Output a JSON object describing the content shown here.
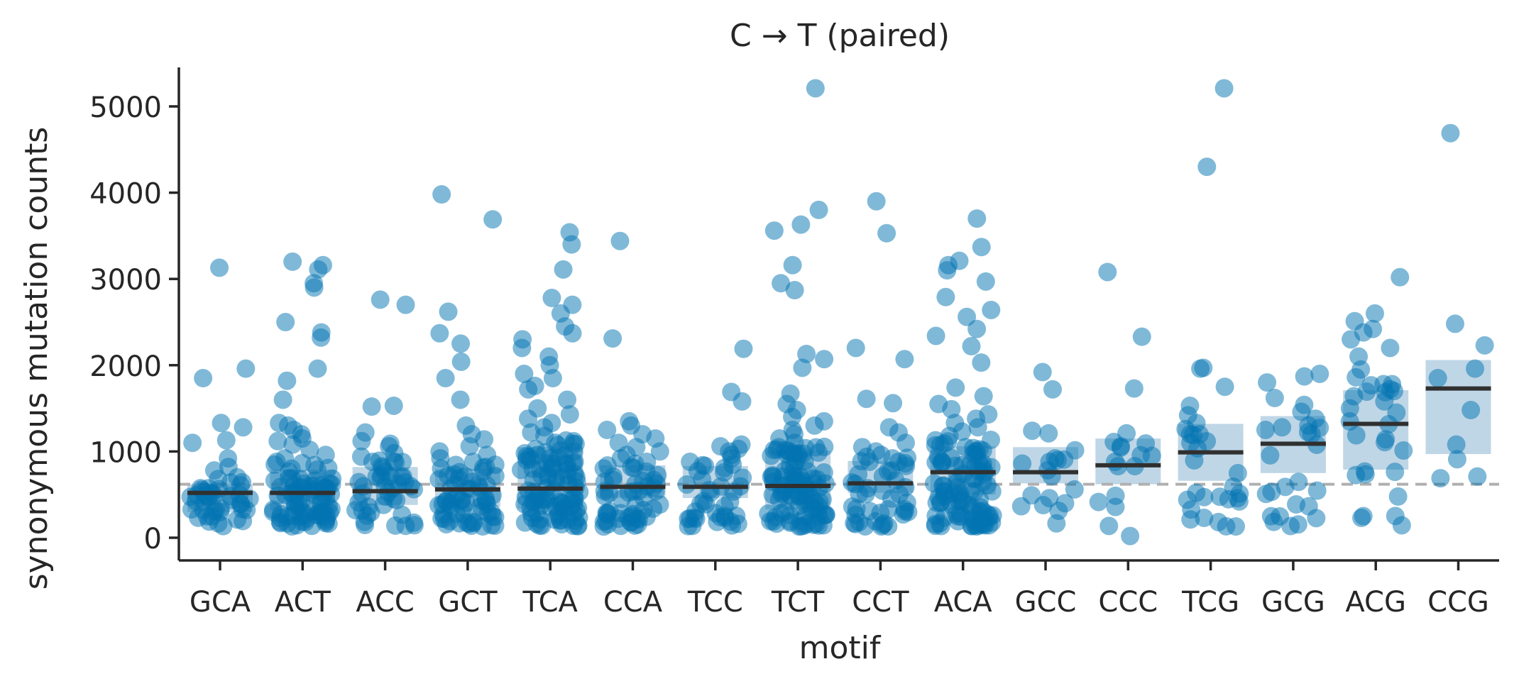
{
  "chart_data": {
    "type": "scatter",
    "title": "C → T (paired)",
    "xlabel": "motif",
    "ylabel": "synonymous mutation counts",
    "ylim": [
      -250,
      5460
    ],
    "yticks": [
      0,
      1000,
      2000,
      3000,
      4000,
      5000
    ],
    "grid": false,
    "legend": "none",
    "reference_line": 620,
    "colors": {
      "points": "#0173b2",
      "median": "#303030",
      "box": "#a9c8de",
      "reference": "#b0b0b0",
      "axis": "#262626"
    },
    "categories": [
      "GCA",
      "ACT",
      "ACC",
      "GCT",
      "TCA",
      "CCA",
      "TCC",
      "TCT",
      "CCT",
      "ACA",
      "GCC",
      "CCC",
      "TCG",
      "GCG",
      "ACG",
      "CCG"
    ],
    "groups": [
      {
        "motif": "GCA",
        "median": 520,
        "q1": 300,
        "q3": 620,
        "outliers": [
          3130,
          1960,
          1850,
          1330,
          1280,
          1130,
          1100,
          920,
          820,
          780,
          700,
          640
        ],
        "n_bulk": 40
      },
      {
        "motif": "ACT",
        "median": 520,
        "q1": 320,
        "q3": 790,
        "outliers": [
          3200,
          3160,
          3110,
          2950,
          2900,
          2500,
          2380,
          2320,
          1960,
          1820,
          1600,
          1330,
          1300,
          1250,
          1200,
          1150,
          1120,
          1080,
          1020,
          960,
          920,
          880
        ],
        "n_bulk": 80
      },
      {
        "motif": "ACC",
        "median": 540,
        "q1": 380,
        "q3": 820,
        "outliers": [
          2760,
          2700,
          1530,
          1520,
          1220,
          1120,
          1090,
          1060,
          980,
          940,
          880
        ],
        "n_bulk": 40
      },
      {
        "motif": "GCT",
        "median": 560,
        "q1": 360,
        "q3": 800,
        "outliers": [
          3980,
          3690,
          2620,
          2370,
          2250,
          2040,
          1850,
          1600,
          1300,
          1200,
          1140,
          1060,
          1000,
          960,
          920,
          880
        ],
        "n_bulk": 60
      },
      {
        "motif": "TCA",
        "median": 570,
        "q1": 340,
        "q3": 1050,
        "outliers": [
          3540,
          3400,
          3110,
          2780,
          2700,
          2600,
          2450,
          2370,
          2300,
          2200,
          2100,
          2000,
          1900,
          1850,
          1760,
          1720,
          1600,
          1500,
          1430,
          1380,
          1330,
          1280,
          1220,
          1180
        ],
        "n_bulk": 95
      },
      {
        "motif": "CCA",
        "median": 590,
        "q1": 460,
        "q3": 840,
        "outliers": [
          3440,
          2310,
          1350,
          1300,
          1250,
          1200,
          1150,
          1100,
          1050,
          1000,
          960,
          920,
          880
        ],
        "n_bulk": 50
      },
      {
        "motif": "TCC",
        "median": 590,
        "q1": 460,
        "q3": 830,
        "outliers": [
          2190,
          1690,
          1580,
          1080,
          1060,
          1030,
          1000,
          960,
          920,
          880
        ],
        "n_bulk": 35
      },
      {
        "motif": "TCT",
        "median": 600,
        "q1": 330,
        "q3": 1010,
        "outliers": [
          5210,
          3800,
          3630,
          3560,
          3160,
          2950,
          2870,
          2130,
          2070,
          1970,
          1670,
          1550,
          1480,
          1400,
          1350,
          1300,
          1250,
          1200,
          1150,
          1100,
          1050
        ],
        "n_bulk": 95
      },
      {
        "motif": "CCT",
        "median": 630,
        "q1": 520,
        "q3": 890,
        "outliers": [
          3900,
          3530,
          2200,
          2070,
          1610,
          1560,
          1280,
          1220,
          1100,
          1050,
          1000,
          960,
          920,
          880
        ],
        "n_bulk": 40
      },
      {
        "motif": "ACA",
        "median": 760,
        "q1": 500,
        "q3": 1060,
        "outliers": [
          3700,
          3370,
          3210,
          3160,
          3100,
          2970,
          2790,
          2640,
          2560,
          2420,
          2340,
          2220,
          2030,
          1740,
          1640,
          1550,
          1490,
          1430,
          1380,
          1330,
          1280,
          1230,
          1180,
          1130
        ],
        "n_bulk": 95
      },
      {
        "motif": "GCC",
        "median": 760,
        "q1": 630,
        "q3": 1050,
        "outliers": [
          1920,
          1720,
          1240,
          1210,
          920,
          880
        ],
        "n_bulk": 14
      },
      {
        "motif": "CCC",
        "median": 840,
        "q1": 620,
        "q3": 1150,
        "outliers": [
          3080,
          2330,
          1730,
          1210,
          1110,
          1060,
          950,
          880,
          830,
          20
        ],
        "n_bulk": 8
      },
      {
        "motif": "TCG",
        "median": 990,
        "q1": 660,
        "q3": 1320,
        "outliers": [
          5210,
          4300,
          1970,
          1960,
          1750,
          1530,
          1420,
          1330,
          1260,
          1200
        ],
        "n_bulk": 22
      },
      {
        "motif": "GCG",
        "median": 1090,
        "q1": 750,
        "q3": 1410,
        "outliers": [
          1900,
          1870,
          1800,
          1620,
          1540,
          1460,
          1380,
          1300,
          1250,
          1200
        ],
        "n_bulk": 18
      },
      {
        "motif": "ACG",
        "median": 1320,
        "q1": 790,
        "q3": 1710,
        "outliers": [
          3020,
          2600,
          2510,
          2420,
          2380,
          2300,
          2200,
          2100,
          1950,
          1860,
          1780,
          1700,
          1640,
          1580,
          1500,
          1450
        ],
        "n_bulk": 20
      },
      {
        "motif": "CCG",
        "median": 1730,
        "q1": 970,
        "q3": 2060,
        "outliers": [
          4690,
          2480,
          2230,
          1960,
          1850,
          1480,
          1080,
          910,
          710,
          690
        ],
        "n_bulk": 0
      }
    ]
  }
}
